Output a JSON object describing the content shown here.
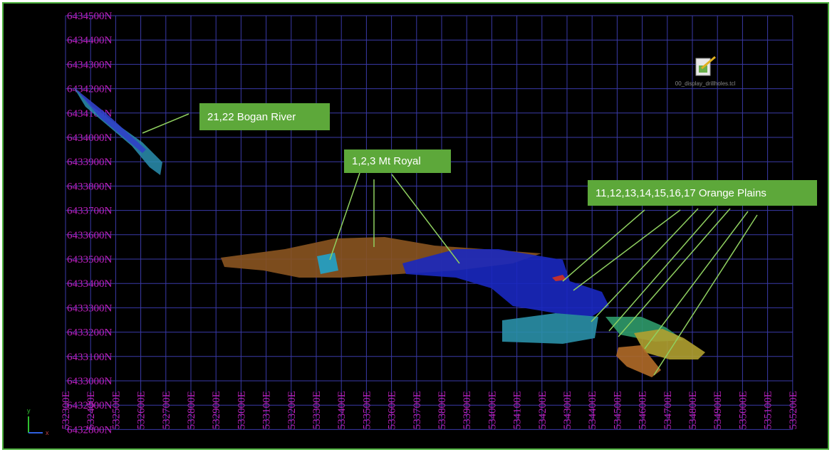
{
  "viewport": {
    "northing_labels": [
      "6434500N",
      "6434400N",
      "6434300N",
      "6434200N",
      "6434100N",
      "6434000N",
      "6433900N",
      "6433800N",
      "6433700N",
      "6433600N",
      "6433500N",
      "6433400N",
      "6433300N",
      "6433200N",
      "6433100N",
      "6433000N",
      "6432900N",
      "6432800N"
    ],
    "easting_labels": [
      "532300E",
      "532400E",
      "532500E",
      "532600E",
      "532700E",
      "532800E",
      "532900E",
      "533000E",
      "533100E",
      "533200E",
      "533300E",
      "533400E",
      "533500E",
      "533600E",
      "533700E",
      "533800E",
      "533900E",
      "534000E",
      "534100E",
      "534200E",
      "534300E",
      "534400E",
      "534500E",
      "534600E",
      "534700E",
      "534800E",
      "534900E",
      "535000E",
      "535100E",
      "535200E"
    ],
    "annotations": {
      "bogan_river": "21,22 Bogan River",
      "mt_royal": "1,2,3 Mt Royal",
      "orange_plains": "11,12,13,14,15,16,17 Orange Plains"
    },
    "icon_label": "00_display_drillholes.tcl",
    "axis_triad": {
      "y": "y",
      "x": "x"
    }
  }
}
